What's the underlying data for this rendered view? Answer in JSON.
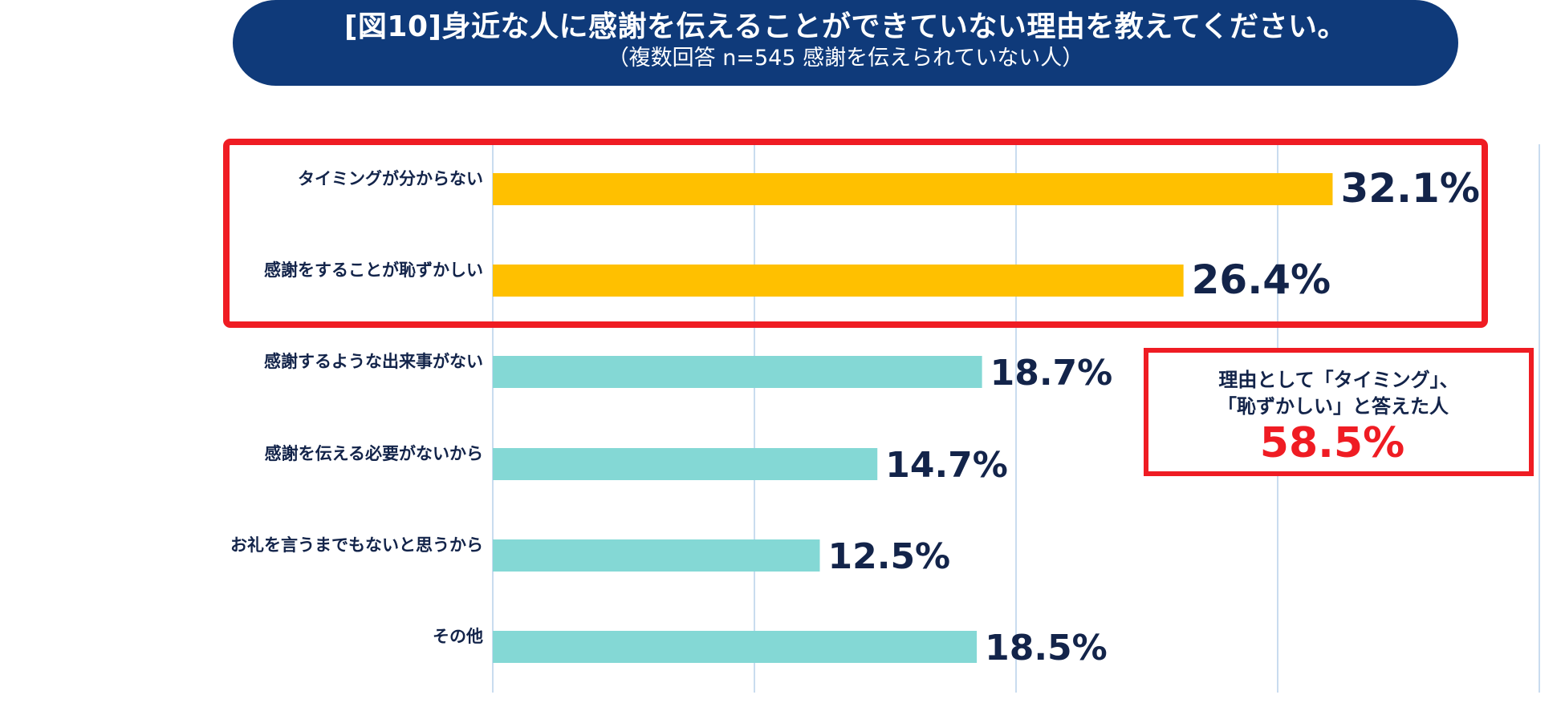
{
  "title": {
    "main": "[図10]身近な人に感謝を伝えることができていない理由を教えてください。",
    "sub": "（複数回答 n=545 感謝を伝えられていない人）"
  },
  "chart_data": {
    "type": "bar",
    "orientation": "horizontal",
    "title": "[図10]身近な人に感謝を伝えることができていない理由を教えてください。",
    "subtitle": "（複数回答 n=545 感謝を伝えられていない人）",
    "categories": [
      "タイミングが分からない",
      "感謝をすることが恥ずかしい",
      "感謝するような出来事がない",
      "感謝を伝える必要がないから",
      "お礼を言うまでもないと思うから",
      "その他"
    ],
    "values": [
      32.1,
      26.4,
      18.7,
      14.7,
      12.5,
      18.5
    ],
    "labels": [
      "32.1%",
      "26.4%",
      "18.7%",
      "14.7%",
      "12.5%",
      "18.5%"
    ],
    "highlighted": [
      true,
      true,
      false,
      false,
      false,
      false
    ],
    "xlim": [
      0,
      40
    ],
    "grid": true,
    "xlabel": "",
    "ylabel": "",
    "colors": {
      "highlight": "#ffc000",
      "normal": "#84d8d5",
      "grid": "#c9dcef",
      "label": "#13244a",
      "value": "#13244a",
      "emphasis": "#ef1c23"
    },
    "annotation": {
      "line1": "理由として「タイミング」、",
      "line2": "「恥ずかしい」と答えた人",
      "value": "58.5%"
    }
  }
}
